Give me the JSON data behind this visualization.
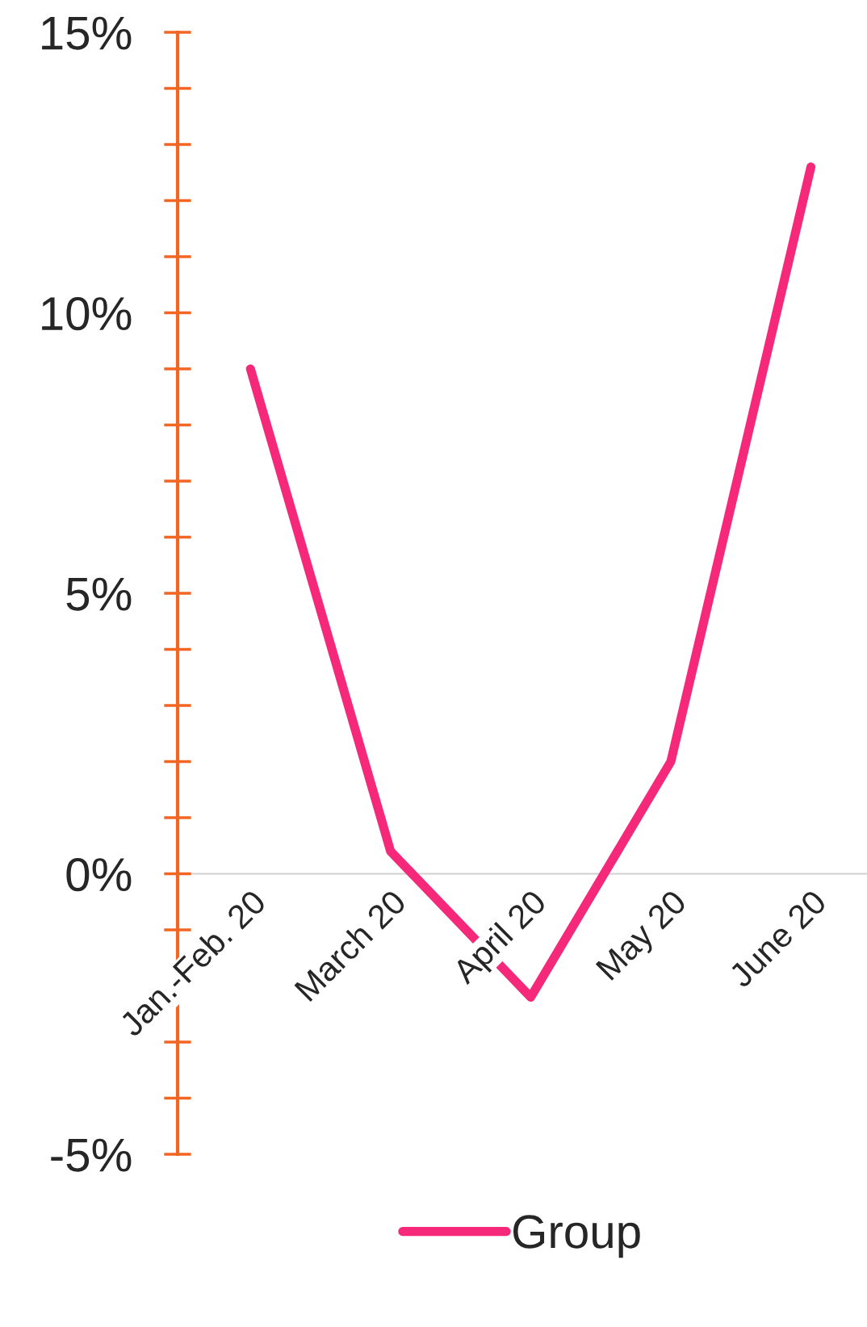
{
  "chart_data": {
    "type": "line",
    "categories": [
      "Jan.-Feb. 20",
      "March 20",
      "April 20",
      "May 20",
      "June 20"
    ],
    "series": [
      {
        "name": "Group",
        "color": "#f5287a",
        "values": [
          9.0,
          0.4,
          -2.2,
          2.0,
          12.6
        ]
      }
    ],
    "ylim": [
      -5,
      15
    ],
    "yticks": [
      {
        "value": -5,
        "label": "-5%"
      },
      {
        "value": 0,
        "label": "0%"
      },
      {
        "value": 5,
        "label": "5%"
      },
      {
        "value": 10,
        "label": "10%"
      },
      {
        "value": 15,
        "label": "15%"
      }
    ],
    "legend": "bottom",
    "grid": false,
    "marker": "none",
    "line_style": "solid"
  }
}
